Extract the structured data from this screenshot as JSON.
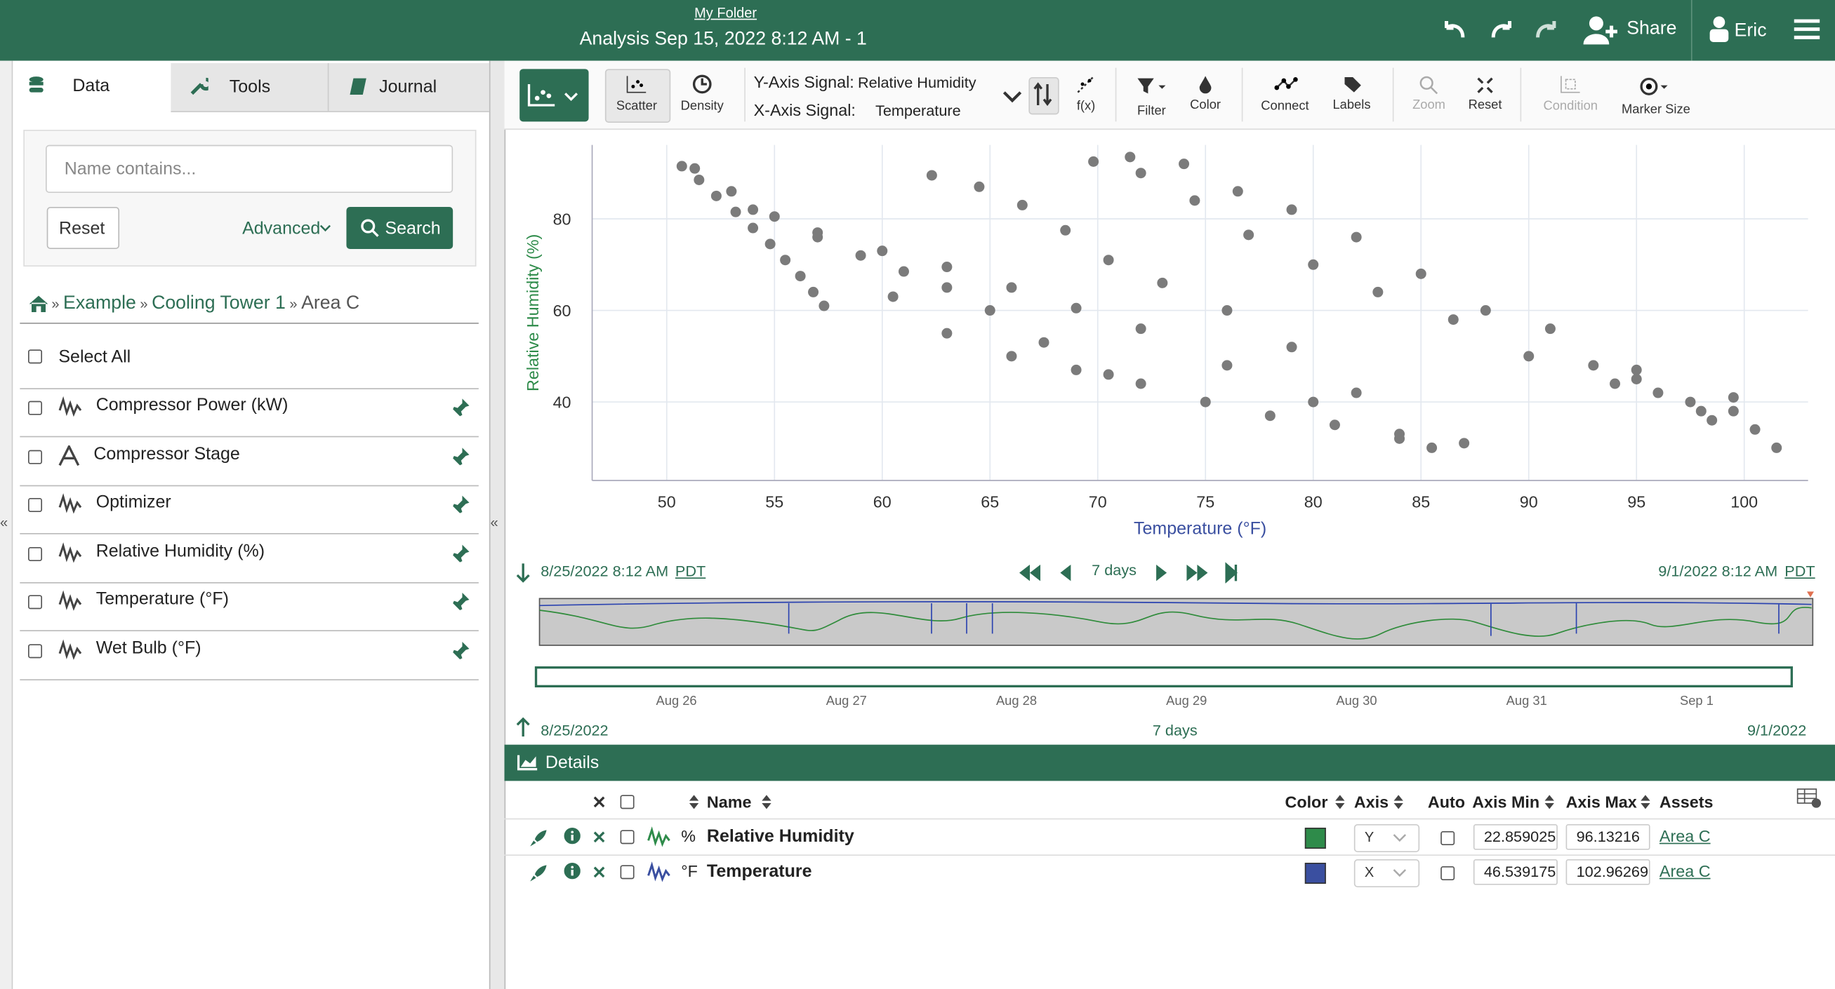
{
  "header": {
    "folder": "My Folder",
    "title": "Analysis Sep 15, 2022 8:12 AM - 1",
    "share": "Share",
    "user": "Eric"
  },
  "sidebar": {
    "tabs": [
      "Data",
      "Tools",
      "Journal"
    ],
    "search_placeholder": "Name contains...",
    "reset": "Reset",
    "advanced": "Advanced",
    "search": "Search",
    "breadcrumb": [
      "Example",
      "Cooling Tower 1",
      "Area C"
    ],
    "select_all": "Select All",
    "items": [
      {
        "name": "Compressor Power (kW)",
        "icon": "signal"
      },
      {
        "name": "Compressor Stage",
        "icon": "string"
      },
      {
        "name": "Optimizer",
        "icon": "signal"
      },
      {
        "name": "Relative Humidity (%)",
        "icon": "signal"
      },
      {
        "name": "Temperature (°F)",
        "icon": "signal"
      },
      {
        "name": "Wet Bulb (°F)",
        "icon": "signal"
      }
    ]
  },
  "toolbar": {
    "scatter": "Scatter",
    "density": "Density",
    "y_signal_label": "Y-Axis Signal:",
    "y_signal": "Relative Humidity",
    "x_signal_label": "X-Axis Signal:",
    "x_signal": "Temperature",
    "fx": "f(x)",
    "filter": "Filter",
    "color": "Color",
    "connect": "Connect",
    "labels": "Labels",
    "zoom": "Zoom",
    "reset": "Reset",
    "condition": "Condition",
    "marker_size": "Marker Size"
  },
  "chart_data": {
    "type": "scatter",
    "x_label": "Temperature (°F)",
    "y_label": "Relative Humidity (%)",
    "color": "#7b7b7b",
    "grid": true,
    "xlim": [
      46.539175,
      102.96269
    ],
    "ylim": [
      22.859025,
      96.13216
    ],
    "xticks": [
      50,
      55,
      60,
      65,
      70,
      75,
      80,
      85,
      90,
      95,
      100
    ],
    "yticks": [
      40,
      60,
      80
    ],
    "x": [
      50.7,
      51.5,
      52.3,
      53.2,
      54.0,
      54.8,
      55.5,
      56.2,
      56.8,
      57.3,
      51.3,
      53.0,
      55.0,
      57.0,
      59.0,
      61.0,
      63.0,
      65.0,
      67.5,
      70.5,
      54.0,
      57.0,
      60.0,
      63.0,
      66.0,
      69.0,
      72.0,
      76.0,
      80.0,
      84.0,
      62.3,
      64.5,
      66.5,
      68.5,
      70.5,
      73.0,
      76.0,
      79.0,
      82.0,
      85.5,
      69.8,
      72.0,
      74.5,
      77.0,
      80.0,
      83.0,
      86.5,
      90.0,
      94.0,
      98.0,
      71.5,
      74.0,
      76.5,
      79.0,
      82.0,
      85.0,
      88.0,
      91.0,
      95.0,
      99.5,
      60.5,
      63.0,
      66.0,
      69.0,
      72.0,
      75.0,
      78.0,
      81.0,
      84.0,
      87.0,
      93.0,
      95.0,
      96.0,
      97.5,
      98.5,
      99.5,
      100.5,
      101.5
    ],
    "values": [
      91.5,
      88.5,
      85,
      81.5,
      78,
      74.5,
      71,
      67.5,
      64,
      61,
      91,
      86,
      80.5,
      76,
      72,
      68.5,
      65,
      60,
      53,
      46,
      82,
      77,
      73,
      69.5,
      65,
      60.5,
      56,
      48,
      40,
      32,
      89.5,
      87,
      83,
      77.5,
      71,
      66,
      60,
      52,
      42,
      30,
      92.5,
      90,
      84,
      76.5,
      70,
      64,
      58,
      50,
      44,
      38,
      93.5,
      92,
      86,
      82,
      76,
      68,
      60,
      56,
      47,
      41,
      63,
      55,
      50,
      47,
      44,
      40,
      37,
      35,
      33,
      31,
      48,
      45,
      42,
      40,
      36,
      38,
      34,
      30
    ]
  },
  "timebar": {
    "start": "8/25/2022 8:12 AM",
    "start_tz": "PDT",
    "duration": "7 days",
    "end": "9/1/2022 8:12 AM",
    "end_tz": "PDT",
    "dates": [
      "Aug 26",
      "Aug 27",
      "Aug 28",
      "Aug 29",
      "Aug 30",
      "Aug 31",
      "Sep 1"
    ],
    "range_start": "8/25/2022",
    "range_duration": "7 days",
    "range_end": "9/1/2022"
  },
  "details": {
    "title": "Details",
    "columns": [
      "Name",
      "Color",
      "Axis",
      "Auto",
      "Axis Min",
      "Axis Max",
      "Assets"
    ],
    "rows": [
      {
        "unit": "%",
        "name": "Relative Humidity",
        "color": "#2e8b4a",
        "axis": "Y",
        "asset": "Area C"
      },
      {
        "unit": "°F",
        "name": "Temperature",
        "color": "#3a4fa0",
        "axis": "X",
        "asset": "Area C"
      }
    ]
  }
}
